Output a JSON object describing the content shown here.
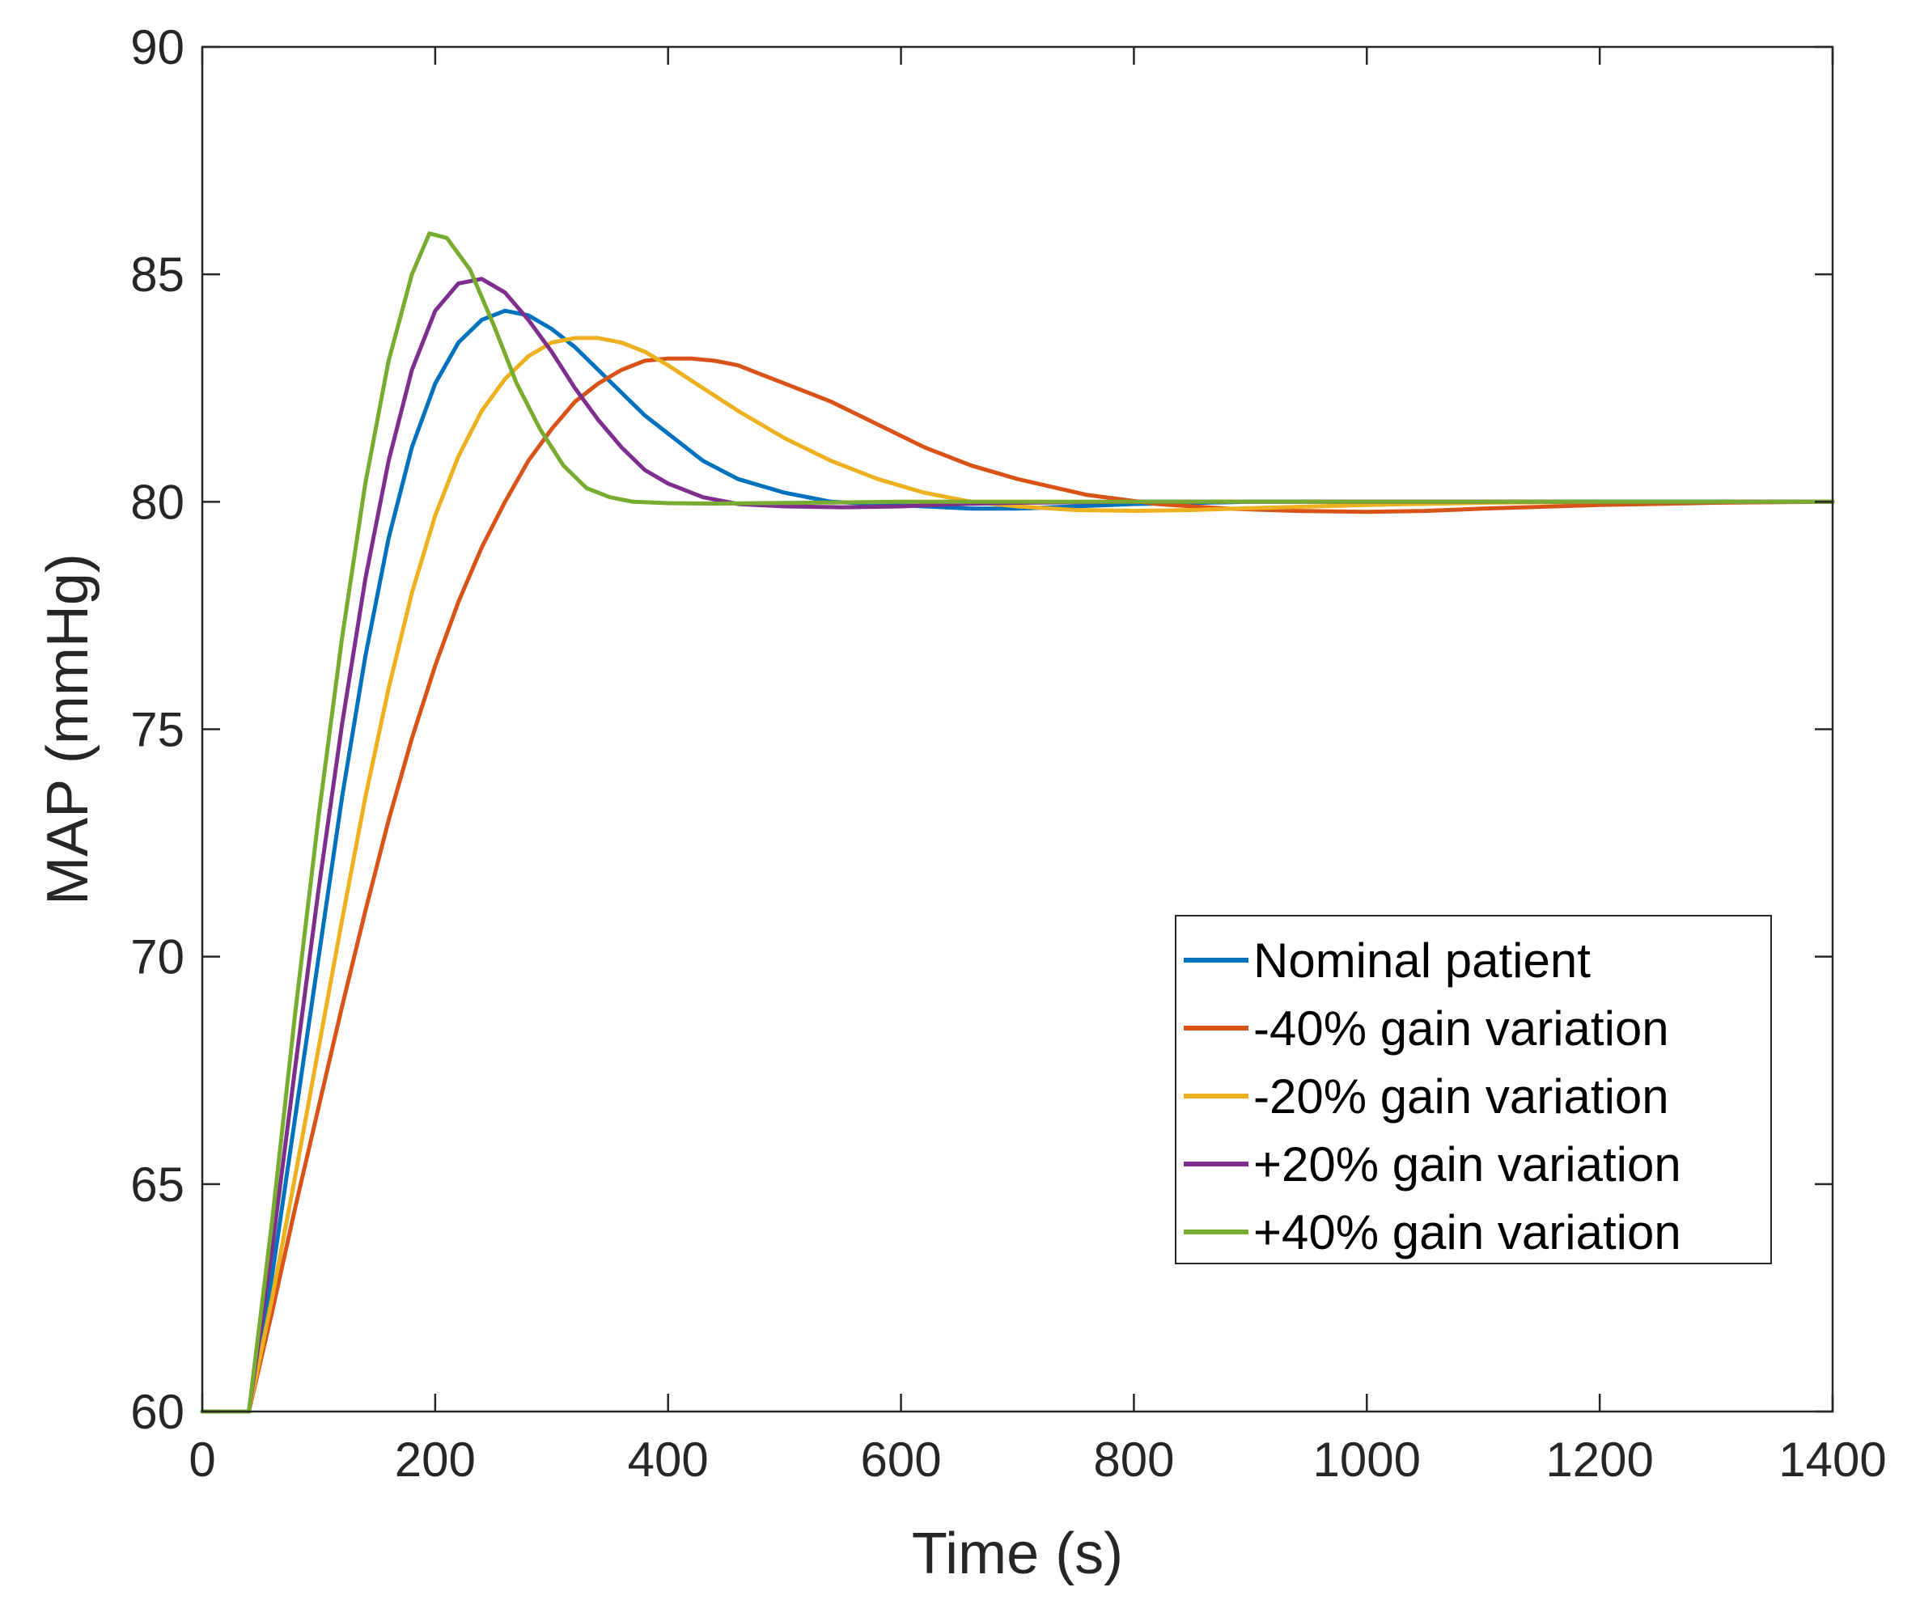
{
  "chart_data": {
    "type": "line",
    "title": "",
    "xlabel": "Time (s)",
    "ylabel": "MAP (mmHg)",
    "xlim": [
      0,
      1400
    ],
    "ylim": [
      60,
      90
    ],
    "xticks": [
      0,
      200,
      400,
      600,
      800,
      1000,
      1200,
      1400
    ],
    "yticks": [
      60,
      65,
      70,
      75,
      80,
      85,
      90
    ],
    "grid": false,
    "legend_position": "lower-right",
    "series": [
      {
        "name": "Nominal patient",
        "color": "#0072BD",
        "x": [
          0,
          40,
          60,
          80,
          100,
          120,
          140,
          160,
          180,
          200,
          220,
          240,
          260,
          280,
          300,
          320,
          340,
          360,
          380,
          400,
          430,
          460,
          500,
          540,
          580,
          620,
          660,
          700,
          750,
          800,
          900,
          1000,
          1100,
          1200,
          1400
        ],
        "y": [
          60,
          60,
          63.0,
          66.5,
          70.0,
          73.5,
          76.6,
          79.2,
          81.2,
          82.6,
          83.5,
          84.0,
          84.2,
          84.1,
          83.8,
          83.4,
          82.9,
          82.4,
          81.9,
          81.5,
          80.9,
          80.5,
          80.2,
          80.0,
          79.95,
          79.9,
          79.85,
          79.85,
          79.9,
          79.95,
          80.0,
          80.0,
          80.0,
          80.0,
          80.0
        ]
      },
      {
        "name": "-40% gain variation",
        "color": "#D95319",
        "x": [
          0,
          40,
          60,
          80,
          100,
          120,
          140,
          160,
          180,
          200,
          220,
          240,
          260,
          280,
          300,
          320,
          340,
          360,
          380,
          400,
          420,
          440,
          460,
          480,
          500,
          540,
          580,
          620,
          660,
          700,
          760,
          820,
          880,
          940,
          1000,
          1050,
          1100,
          1200,
          1300,
          1400
        ],
        "y": [
          60,
          60,
          62.2,
          64.5,
          66.7,
          68.9,
          71.0,
          73.0,
          74.8,
          76.4,
          77.8,
          79.0,
          80.0,
          80.9,
          81.6,
          82.2,
          82.6,
          82.9,
          83.1,
          83.15,
          83.15,
          83.1,
          83.0,
          82.8,
          82.6,
          82.2,
          81.7,
          81.2,
          80.8,
          80.5,
          80.15,
          79.95,
          79.85,
          79.8,
          79.78,
          79.8,
          79.85,
          79.93,
          79.98,
          80.0
        ]
      },
      {
        "name": "-20% gain variation",
        "color": "#EDB120",
        "x": [
          0,
          40,
          60,
          80,
          100,
          120,
          140,
          160,
          180,
          200,
          220,
          240,
          260,
          280,
          300,
          320,
          340,
          360,
          380,
          400,
          430,
          460,
          500,
          540,
          580,
          620,
          660,
          700,
          750,
          800,
          850,
          900,
          1000,
          1100,
          1200,
          1400
        ],
        "y": [
          60,
          60,
          62.5,
          65.2,
          68.0,
          70.8,
          73.5,
          75.9,
          78.0,
          79.7,
          81.0,
          82.0,
          82.7,
          83.2,
          83.5,
          83.6,
          83.6,
          83.5,
          83.3,
          83.0,
          82.5,
          82.0,
          81.4,
          80.9,
          80.5,
          80.2,
          80.0,
          79.9,
          79.82,
          79.8,
          79.82,
          79.86,
          79.93,
          79.98,
          80.0,
          80.0
        ]
      },
      {
        "name": "+20% gain variation",
        "color": "#7E2F8E",
        "x": [
          0,
          40,
          60,
          80,
          100,
          120,
          140,
          160,
          180,
          200,
          220,
          240,
          260,
          280,
          300,
          320,
          340,
          360,
          380,
          400,
          430,
          460,
          500,
          550,
          600,
          650,
          700,
          800,
          900,
          1000,
          1200,
          1400
        ],
        "y": [
          60,
          60,
          63.6,
          67.6,
          71.5,
          75.1,
          78.3,
          80.9,
          82.9,
          84.2,
          84.8,
          84.9,
          84.6,
          84.0,
          83.3,
          82.5,
          81.8,
          81.2,
          80.7,
          80.4,
          80.1,
          79.95,
          79.9,
          79.88,
          79.9,
          79.95,
          79.98,
          80.0,
          80.0,
          80.0,
          80.0,
          80.0
        ]
      },
      {
        "name": "+40% gain variation",
        "color": "#77AC30",
        "x": [
          0,
          40,
          60,
          80,
          100,
          120,
          140,
          160,
          180,
          195,
          210,
          230,
          250,
          270,
          290,
          310,
          330,
          350,
          370,
          400,
          440,
          480,
          520,
          600,
          700,
          800,
          1000,
          1200,
          1400
        ],
        "y": [
          60,
          60,
          64.2,
          68.8,
          73.1,
          77.0,
          80.4,
          83.1,
          85.0,
          85.9,
          85.8,
          85.1,
          83.9,
          82.6,
          81.6,
          80.8,
          80.3,
          80.1,
          80.0,
          79.97,
          79.96,
          79.97,
          79.98,
          80.0,
          80.0,
          80.0,
          80.0,
          80.0,
          80.0
        ]
      }
    ]
  }
}
